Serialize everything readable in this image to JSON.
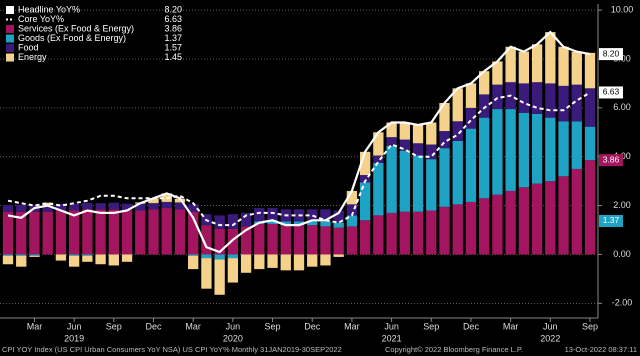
{
  "chart_data": {
    "type": "bar",
    "categories": [
      null,
      null,
      "Mar",
      null,
      null,
      "Jun",
      null,
      null,
      "Sep",
      null,
      null,
      "Dec",
      null,
      null,
      "Mar",
      null,
      null,
      "Jun",
      null,
      null,
      "Sep",
      null,
      null,
      "Dec",
      null,
      null,
      "Mar",
      null,
      null,
      "Jun",
      null,
      null,
      "Sep",
      null,
      null,
      "Dec",
      null,
      null,
      "Mar",
      null,
      null,
      "Jun",
      null,
      null,
      "Sep"
    ],
    "year_labels": [
      "2019",
      "2020",
      "2021",
      "2022"
    ],
    "ylim": [
      -2.6,
      10.25
    ],
    "yticks": [
      {
        "value": 10,
        "label": "10.00"
      },
      {
        "value": 8,
        "label": "8.00"
      },
      {
        "value": 6,
        "label": "6.00"
      },
      {
        "value": 4,
        "label": "4.00"
      },
      {
        "value": 2,
        "label": "2.00"
      },
      {
        "value": 0,
        "label": "0.00"
      },
      {
        "value": -2,
        "label": "-2.00"
      }
    ],
    "grid": true,
    "legend": "top-left",
    "series": [
      {
        "name": "Headline YoY%",
        "type": "line",
        "color": "#ffffff",
        "dashed": false,
        "axis_badge": true,
        "latest": {
          "value": 8.2,
          "label": "8.20"
        },
        "values": [
          1.6,
          1.5,
          1.9,
          2.0,
          1.8,
          1.6,
          1.8,
          1.7,
          1.7,
          1.8,
          2.1,
          2.3,
          2.5,
          2.3,
          1.5,
          0.3,
          0.1,
          0.6,
          1.0,
          1.3,
          1.4,
          1.2,
          1.2,
          1.4,
          1.4,
          1.7,
          2.6,
          4.2,
          5.0,
          5.4,
          5.4,
          5.3,
          5.4,
          6.2,
          6.8,
          7.0,
          7.5,
          7.9,
          8.5,
          8.3,
          8.6,
          9.1,
          8.5,
          8.3,
          8.2
        ]
      },
      {
        "name": "Core YoY%",
        "type": "line",
        "color": "#ffffff",
        "dashed": true,
        "axis_badge": true,
        "latest": {
          "value": 6.63,
          "label": "6.63"
        },
        "values": [
          2.2,
          2.1,
          2.0,
          2.1,
          2.0,
          2.1,
          2.2,
          2.4,
          2.4,
          2.3,
          2.3,
          2.3,
          2.3,
          2.4,
          2.1,
          1.4,
          1.2,
          1.2,
          1.6,
          1.7,
          1.7,
          1.6,
          1.6,
          1.6,
          1.4,
          1.3,
          1.6,
          3.0,
          3.8,
          4.5,
          4.3,
          4.0,
          4.0,
          4.6,
          4.9,
          5.5,
          6.0,
          6.4,
          6.5,
          6.2,
          6.0,
          5.9,
          5.9,
          6.3,
          6.63
        ]
      },
      {
        "name": "Services (Ex Food & Energy)",
        "type": "bar",
        "color": "#a3155e",
        "axis_badge": true,
        "latest": {
          "value": 3.86,
          "label": "3.86"
        },
        "values": [
          1.75,
          1.75,
          1.75,
          1.75,
          1.8,
          1.8,
          1.85,
          1.85,
          1.85,
          1.8,
          1.8,
          1.85,
          1.9,
          1.85,
          1.75,
          1.2,
          1.05,
          1.05,
          1.15,
          1.25,
          1.25,
          1.2,
          1.2,
          1.2,
          1.15,
          1.1,
          1.15,
          1.4,
          1.6,
          1.7,
          1.75,
          1.75,
          1.8,
          1.95,
          2.05,
          2.15,
          2.3,
          2.45,
          2.6,
          2.75,
          2.9,
          3.0,
          3.2,
          3.5,
          3.86
        ]
      },
      {
        "name": "Goods (Ex Food & Energy)",
        "type": "bar",
        "color": "#1fa3c4",
        "axis_badge": true,
        "latest": {
          "value": 1.37,
          "label": "1.37"
        },
        "values": [
          -0.05,
          -0.05,
          -0.05,
          0.0,
          0.0,
          -0.05,
          -0.05,
          0.0,
          0.0,
          0.0,
          0.0,
          0.0,
          0.0,
          0.0,
          -0.05,
          -0.15,
          -0.2,
          -0.15,
          0.0,
          0.1,
          0.15,
          0.15,
          0.15,
          0.15,
          0.2,
          0.2,
          0.45,
          1.55,
          2.15,
          2.75,
          2.5,
          2.3,
          2.1,
          2.4,
          2.6,
          3.0,
          3.3,
          3.5,
          3.35,
          3.05,
          2.85,
          2.6,
          2.25,
          1.95,
          1.37
        ]
      },
      {
        "name": "Food",
        "type": "bar",
        "color": "#3a1a7a",
        "axis_badge": false,
        "latest": {
          "value": 1.57,
          "label": "1.57"
        },
        "values": [
          0.27,
          0.28,
          0.28,
          0.27,
          0.27,
          0.27,
          0.26,
          0.25,
          0.27,
          0.28,
          0.28,
          0.25,
          0.25,
          0.28,
          0.3,
          0.45,
          0.55,
          0.6,
          0.55,
          0.55,
          0.5,
          0.5,
          0.5,
          0.5,
          0.5,
          0.5,
          0.45,
          0.3,
          0.3,
          0.35,
          0.45,
          0.5,
          0.6,
          0.7,
          0.8,
          0.85,
          0.95,
          1.0,
          1.1,
          1.2,
          1.3,
          1.4,
          1.45,
          1.5,
          1.57
        ]
      },
      {
        "name": "Energy",
        "type": "bar",
        "color": "#f5d28c",
        "axis_badge": false,
        "latest": {
          "value": 1.45,
          "label": "1.45"
        },
        "values": [
          -0.35,
          -0.45,
          -0.05,
          0.1,
          -0.25,
          -0.45,
          -0.25,
          -0.4,
          -0.45,
          -0.3,
          0.05,
          0.2,
          0.35,
          0.15,
          -0.55,
          -1.25,
          -1.45,
          -1.0,
          -0.75,
          -0.6,
          -0.55,
          -0.65,
          -0.65,
          -0.5,
          -0.45,
          -0.1,
          0.55,
          0.95,
          0.95,
          0.6,
          0.7,
          0.75,
          0.9,
          1.15,
          1.35,
          1.0,
          0.95,
          0.95,
          1.45,
          1.3,
          1.55,
          2.1,
          1.6,
          1.35,
          1.45
        ]
      }
    ],
    "footer": {
      "source": "CPI YOY Index (US CPI Urban Consumers YoY NSA) US CPI YoY% Monthly 31JAN2019-30SEP2022",
      "copyright": "Copyright© 2022 Bloomberg Finance L.P.",
      "timestamp": "13-Oct-2022 08:37:11"
    }
  }
}
